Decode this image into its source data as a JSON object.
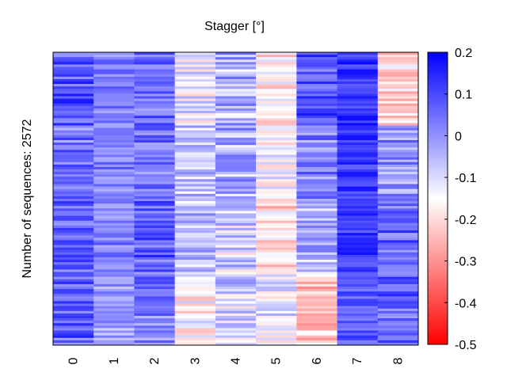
{
  "chart_data": {
    "type": "heatmap",
    "title": "Stagger [°]",
    "ylabel": "Number of sequences: 2572",
    "xlabel": "",
    "columns": [
      "0",
      "1",
      "2",
      "3",
      "4",
      "5",
      "6",
      "7",
      "8"
    ],
    "num_sequences": 2572,
    "colorbar": {
      "min": -0.5,
      "max": 0.2,
      "ticks": [
        "0.2",
        "0.1",
        "0",
        "-0.1",
        "-0.2",
        "-0.3",
        "-0.4",
        "-0.5"
      ],
      "tick_values": [
        0.2,
        0.1,
        0,
        -0.1,
        -0.2,
        -0.3,
        -0.4,
        -0.5
      ],
      "colors": {
        "low": "#ff0000",
        "mid": "#ffffff",
        "high": "#0000ff"
      },
      "mid_value": -0.15
    },
    "column_profiles": [
      {
        "column": "0",
        "segments": [
          {
            "to": 0.25,
            "mean": 0.08
          },
          {
            "to": 0.5,
            "mean": 0.04
          },
          {
            "to": 0.75,
            "mean": 0.06
          },
          {
            "to": 1.0,
            "mean": 0.07
          }
        ],
        "spread": 0.09
      },
      {
        "column": "1",
        "segments": [
          {
            "to": 0.25,
            "mean": 0.02
          },
          {
            "to": 0.5,
            "mean": 0.03
          },
          {
            "to": 0.75,
            "mean": 0.02
          },
          {
            "to": 1.0,
            "mean": -0.02
          }
        ],
        "spread": 0.07
      },
      {
        "column": "2",
        "segments": [
          {
            "to": 0.25,
            "mean": 0.05
          },
          {
            "to": 0.5,
            "mean": 0.04
          },
          {
            "to": 0.75,
            "mean": 0.07
          },
          {
            "to": 1.0,
            "mean": 0.03
          }
        ],
        "spread": 0.09
      },
      {
        "column": "3",
        "segments": [
          {
            "to": 0.25,
            "mean": -0.12
          },
          {
            "to": 0.5,
            "mean": -0.07
          },
          {
            "to": 0.75,
            "mean": -0.06
          },
          {
            "to": 1.0,
            "mean": -0.16
          }
        ],
        "spread": 0.09
      },
      {
        "column": "4",
        "segments": [
          {
            "to": 0.25,
            "mean": -0.05
          },
          {
            "to": 0.5,
            "mean": -0.03
          },
          {
            "to": 0.75,
            "mean": -0.1
          },
          {
            "to": 1.0,
            "mean": -0.1
          }
        ],
        "spread": 0.11
      },
      {
        "column": "5",
        "segments": [
          {
            "to": 0.25,
            "mean": -0.18
          },
          {
            "to": 0.5,
            "mean": -0.14
          },
          {
            "to": 0.75,
            "mean": -0.2
          },
          {
            "to": 1.0,
            "mean": -0.12
          }
        ],
        "spread": 0.09
      },
      {
        "column": "6",
        "segments": [
          {
            "to": 0.25,
            "mean": 0.08
          },
          {
            "to": 0.5,
            "mean": 0.02
          },
          {
            "to": 0.75,
            "mean": -0.05
          },
          {
            "to": 1.0,
            "mean": -0.22
          }
        ],
        "spread": 0.09
      },
      {
        "column": "7",
        "segments": [
          {
            "to": 0.25,
            "mean": 0.13
          },
          {
            "to": 0.5,
            "mean": 0.12
          },
          {
            "to": 0.75,
            "mean": 0.12
          },
          {
            "to": 1.0,
            "mean": 0.08
          }
        ],
        "spread": 0.06
      },
      {
        "column": "8",
        "segments": [
          {
            "to": 0.25,
            "mean": -0.2
          },
          {
            "to": 0.5,
            "mean": 0.0
          },
          {
            "to": 0.75,
            "mean": 0.06
          },
          {
            "to": 1.0,
            "mean": 0.06
          }
        ],
        "spread": 0.09
      }
    ]
  }
}
